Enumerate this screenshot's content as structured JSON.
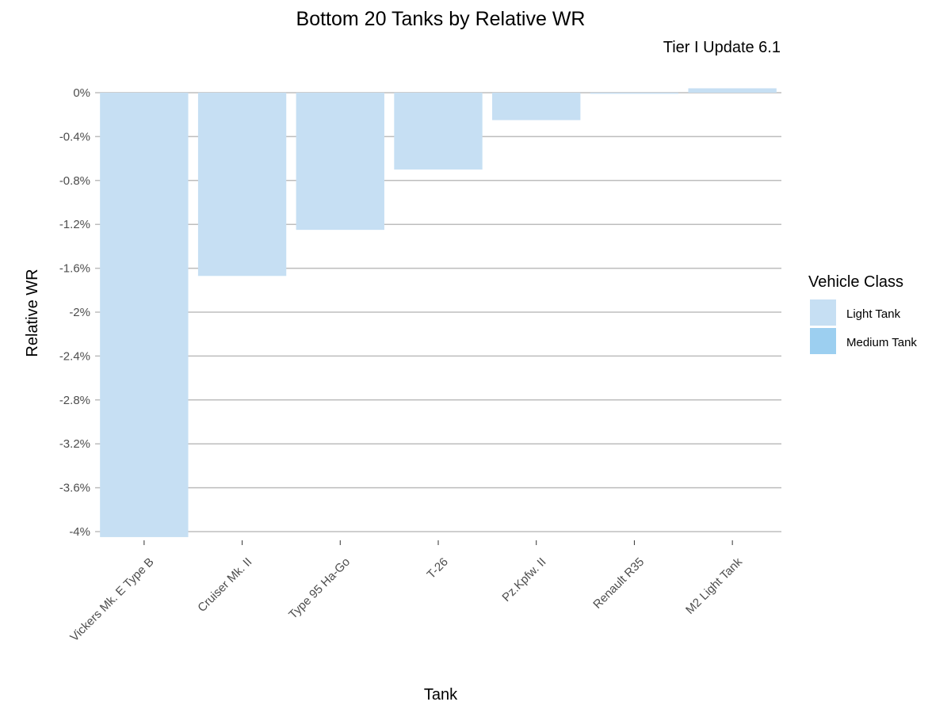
{
  "chart_data": {
    "type": "bar",
    "title": "Bottom 20 Tanks by Relative WR",
    "subtitle": "Tier I Update 6.1",
    "xlabel": "Tank",
    "ylabel": "Relative WR",
    "categories": [
      "Vickers Mk. E Type B",
      "Cruiser Mk. II",
      "Type 95 Ha-Go",
      "T-26",
      "Pz.Kpfw. II",
      "Renault R35",
      "M2 Light Tank"
    ],
    "values": [
      -4.05,
      -1.67,
      -1.25,
      -0.7,
      -0.25,
      -0.01,
      0.04
    ],
    "value_classes": [
      "Light Tank",
      "Light Tank",
      "Light Tank",
      "Light Tank",
      "Light Tank",
      "Light Tank",
      "Light Tank"
    ],
    "y_ticks": [
      0,
      -0.4,
      -0.8,
      -1.2,
      -1.6,
      -2,
      -2.4,
      -2.8,
      -3.2,
      -3.6,
      -4
    ],
    "y_tick_labels": [
      "0%",
      "-0.4%",
      "-0.8%",
      "-1.2%",
      "-1.6%",
      "-2%",
      "-2.4%",
      "-2.8%",
      "-3.2%",
      "-3.6%",
      "-4%"
    ],
    "ylim": [
      -4.2,
      0.1
    ],
    "grid": "horizontal",
    "legend": {
      "title": "Vehicle Class",
      "placement": "right",
      "entries": [
        {
          "label": "Light Tank",
          "color": "#c6dff3"
        },
        {
          "label": "Medium Tank",
          "color": "#9ccff0"
        }
      ]
    },
    "colors": {
      "gridline": "#bdbdbd",
      "tick_text": "#4d4d4d"
    }
  }
}
